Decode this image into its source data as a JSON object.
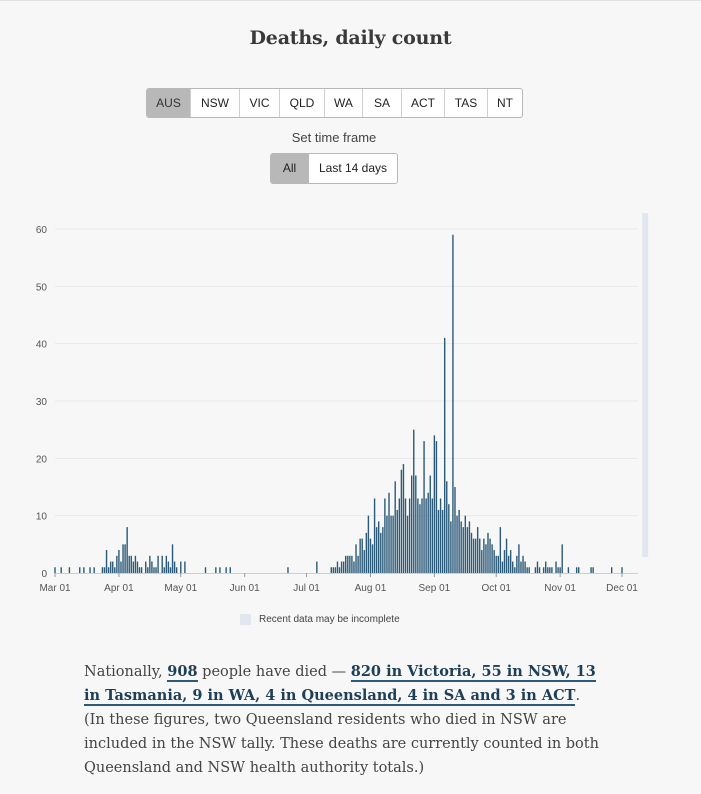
{
  "title": "Deaths, daily count",
  "regions": [
    "AUS",
    "NSW",
    "VIC",
    "QLD",
    "WA",
    "SA",
    "ACT",
    "TAS",
    "NT"
  ],
  "active_region": "AUS",
  "timeframe": {
    "label": "Set time frame",
    "options": [
      "All",
      "Last 14 days"
    ],
    "active": "All"
  },
  "legend": {
    "incomplete_label": "Recent data may be incomplete"
  },
  "colors": {
    "bar": "#2b5a78",
    "incomplete": "#e1e6ef",
    "grid": "#e9e9e9",
    "active_button": "#b8b8b8"
  },
  "paragraph": {
    "prefix": "Nationally, ",
    "total": "908",
    "middle": " people have died — ",
    "breakdown": "820 in Victoria, 55 in NSW, 13 in Tasmania, 9 in WA, 4 in Queensland, 4 in SA and 3 in ACT",
    "suffix": ". (In these figures, two Queensland residents who died in NSW are included in the NSW tally. These deaths are currently counted in both Queensland and NSW health authority totals.)"
  },
  "chart_data": {
    "type": "bar",
    "title": "Deaths, daily count",
    "xlabel": "",
    "ylabel": "",
    "ylim": [
      0,
      60
    ],
    "y_ticks": [
      0,
      10,
      20,
      30,
      40,
      50,
      60
    ],
    "grid": true,
    "x_ticks": [
      "Mar 01",
      "Apr 01",
      "May 01",
      "Jun 01",
      "Jul 01",
      "Aug 01",
      "Sep 01",
      "Oct 01",
      "Nov 01",
      "Dec 01"
    ],
    "date_range": [
      "2020-03-01",
      "2020-12-04"
    ],
    "incomplete_region": [
      "2020-12-04",
      "2020-12-11"
    ],
    "series": [
      {
        "values_by_date": {
          "2020-03-01": 1,
          "2020-03-04": 1,
          "2020-03-08": 1,
          "2020-03-13": 1,
          "2020-03-15": 1,
          "2020-03-18": 1,
          "2020-03-20": 1,
          "2020-03-24": 1,
          "2020-03-25": 1,
          "2020-03-26": 4,
          "2020-03-27": 1,
          "2020-03-28": 2,
          "2020-03-29": 2,
          "2020-03-30": 1,
          "2020-03-31": 3,
          "2020-04-01": 4,
          "2020-04-02": 2,
          "2020-04-03": 5,
          "2020-04-04": 5,
          "2020-04-05": 8,
          "2020-04-06": 3,
          "2020-04-07": 3,
          "2020-04-08": 2,
          "2020-04-09": 3,
          "2020-04-10": 2,
          "2020-04-11": 1,
          "2020-04-12": 1,
          "2020-04-14": 2,
          "2020-04-15": 1,
          "2020-04-16": 3,
          "2020-04-17": 2,
          "2020-04-18": 1,
          "2020-04-19": 1,
          "2020-04-20": 3,
          "2020-04-22": 3,
          "2020-04-23": 1,
          "2020-04-24": 3,
          "2020-04-25": 2,
          "2020-04-26": 1,
          "2020-04-27": 5,
          "2020-04-28": 2,
          "2020-04-29": 1,
          "2020-05-01": 2,
          "2020-05-03": 2,
          "2020-05-13": 1,
          "2020-05-18": 1,
          "2020-05-20": 1,
          "2020-05-23": 1,
          "2020-05-25": 1,
          "2020-06-22": 1,
          "2020-07-06": 2,
          "2020-07-13": 1,
          "2020-07-14": 1,
          "2020-07-15": 1,
          "2020-07-16": 2,
          "2020-07-17": 1,
          "2020-07-18": 2,
          "2020-07-19": 2,
          "2020-07-20": 3,
          "2020-07-21": 3,
          "2020-07-22": 3,
          "2020-07-23": 3,
          "2020-07-24": 2,
          "2020-07-25": 5,
          "2020-07-26": 3,
          "2020-07-27": 6,
          "2020-07-28": 6,
          "2020-07-29": 4,
          "2020-07-30": 7,
          "2020-07-31": 10,
          "2020-08-01": 6,
          "2020-08-02": 5,
          "2020-08-03": 13,
          "2020-08-04": 8,
          "2020-08-05": 9,
          "2020-08-06": 7,
          "2020-08-07": 8,
          "2020-08-08": 13,
          "2020-08-09": 10,
          "2020-08-10": 14,
          "2020-08-11": 10,
          "2020-08-12": 10,
          "2020-08-13": 16,
          "2020-08-14": 11,
          "2020-08-15": 13,
          "2020-08-16": 18,
          "2020-08-17": 19,
          "2020-08-18": 13,
          "2020-08-19": 10,
          "2020-08-20": 13,
          "2020-08-21": 17,
          "2020-08-22": 25,
          "2020-08-23": 17,
          "2020-08-24": 13,
          "2020-08-25": 12,
          "2020-08-26": 13,
          "2020-08-27": 23,
          "2020-08-28": 13,
          "2020-08-29": 14,
          "2020-08-30": 17,
          "2020-08-31": 13,
          "2020-09-01": 24,
          "2020-09-02": 23,
          "2020-09-03": 11,
          "2020-09-04": 13,
          "2020-09-05": 11,
          "2020-09-06": 41,
          "2020-09-07": 16,
          "2020-09-08": 12,
          "2020-09-09": 9,
          "2020-09-10": 59,
          "2020-09-11": 15,
          "2020-09-12": 10,
          "2020-09-13": 11,
          "2020-09-14": 9,
          "2020-09-15": 8,
          "2020-09-16": 10,
          "2020-09-17": 8,
          "2020-09-18": 9,
          "2020-09-19": 7,
          "2020-09-20": 6,
          "2020-09-21": 6,
          "2020-09-22": 8,
          "2020-09-23": 6,
          "2020-09-24": 4,
          "2020-09-25": 6,
          "2020-09-26": 5,
          "2020-09-27": 7,
          "2020-09-28": 6,
          "2020-09-29": 5,
          "2020-09-30": 4,
          "2020-10-01": 3,
          "2020-10-02": 3,
          "2020-10-03": 8,
          "2020-10-04": 2,
          "2020-10-05": 4,
          "2020-10-06": 6,
          "2020-10-07": 3,
          "2020-10-08": 4,
          "2020-10-09": 2,
          "2020-10-10": 1,
          "2020-10-11": 3,
          "2020-10-12": 5,
          "2020-10-13": 2,
          "2020-10-14": 3,
          "2020-10-15": 2,
          "2020-10-16": 1,
          "2020-10-17": 1,
          "2020-10-20": 1,
          "2020-10-21": 2,
          "2020-10-22": 1,
          "2020-10-24": 1,
          "2020-10-25": 2,
          "2020-10-26": 1,
          "2020-10-27": 1,
          "2020-10-28": 1,
          "2020-10-30": 2,
          "2020-10-31": 1,
          "2020-11-01": 1,
          "2020-11-02": 5,
          "2020-11-05": 1,
          "2020-11-09": 1,
          "2020-11-10": 1,
          "2020-11-16": 1,
          "2020-11-17": 1,
          "2020-11-26": 1,
          "2020-12-01": 1
        }
      }
    ]
  }
}
